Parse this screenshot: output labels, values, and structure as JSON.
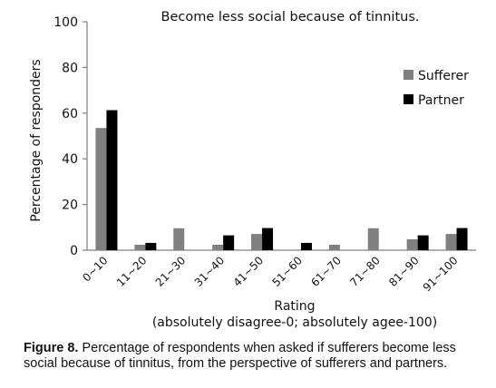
{
  "chart_data": {
    "type": "bar",
    "title": "Become less social because of tinnitus.",
    "xlabel": "Rating",
    "xlabel_note": "(absolutely disagree-0; absolutely agee-100)",
    "ylabel": "Percentage of responders",
    "ylim": [
      0,
      100
    ],
    "yticks": [
      "0",
      "20",
      "40",
      "60",
      "80",
      "100"
    ],
    "grid": false,
    "legend_position": "top-right",
    "categories": [
      "0~10",
      "11~20",
      "21~30",
      "31~40",
      "41~50",
      "51~60",
      "61~70",
      "71~80",
      "81~90",
      "91~100"
    ],
    "series": [
      {
        "name": "Sufferer",
        "color": "#808080",
        "values": [
          53.5,
          2.4,
          9.6,
          2.4,
          7.1,
          0,
          2.4,
          9.6,
          4.8,
          7.1
        ]
      },
      {
        "name": "Partner",
        "color": "#000000",
        "values": [
          61.3,
          3.2,
          0,
          6.5,
          9.7,
          3.2,
          0,
          0,
          6.5,
          9.7
        ]
      }
    ]
  },
  "caption": {
    "label": "Figure 8.",
    "text": " Percentage of respondents when asked if sufferers become less social because of tinnitus, from the perspective of sufferers and partners."
  }
}
